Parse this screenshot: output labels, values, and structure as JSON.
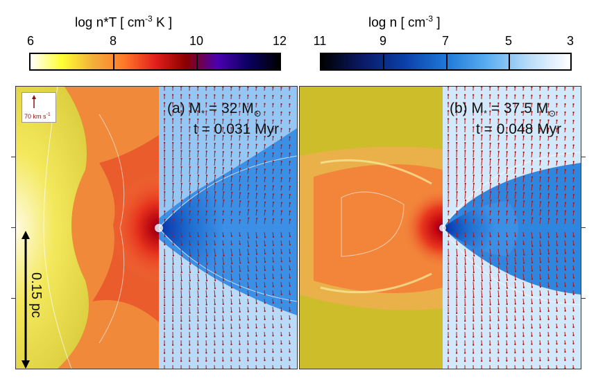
{
  "colorbars": {
    "left": {
      "title_main": "log n*T  [ cm",
      "title_sup": "-3",
      "title_end": " K ]",
      "ticks": [
        "6",
        "8",
        "10",
        "12"
      ],
      "colors": [
        "#ffffff",
        "#ffff33",
        "#f2b03a",
        "#ff7a2a",
        "#e3201b",
        "#8a0000",
        "#4b00b0",
        "#0a0060",
        "#000000"
      ]
    },
    "right": {
      "title_main": "log n   [ cm",
      "title_sup": "-3",
      "title_end": " ]",
      "ticks": [
        "11",
        "9",
        "7",
        "5",
        "3"
      ],
      "colors": [
        "#000000",
        "#0a1a66",
        "#0b3fa8",
        "#1e78d8",
        "#5aaef0",
        "#b9dcf8",
        "#ffffff"
      ]
    }
  },
  "panel_a": {
    "label_prefix": "(a) M",
    "label_sub": "*",
    "label_eq": " = 32 M",
    "label_sun": "⊙",
    "time": "t = 0.031 Myr",
    "velocity_scale": "70 km s",
    "velocity_sup": "-1",
    "scale_bar": "0.15 pc"
  },
  "panel_b": {
    "label_prefix": "(b) M",
    "label_sub": "*",
    "label_eq": " = 37.5 M",
    "label_sun": "⊙",
    "time": "t = 0.048 Myr"
  },
  "colors": {
    "yellow": "#d8c22a",
    "orange": "#f08a35",
    "red": "#e42a1a",
    "blue": "#2a8ae0",
    "light_blue": "#9fcdf5",
    "arrow": "#b01818"
  }
}
